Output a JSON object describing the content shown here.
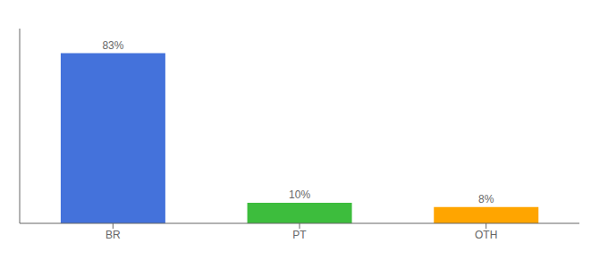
{
  "chart_data": {
    "type": "bar",
    "categories": [
      "BR",
      "PT",
      "OTH"
    ],
    "values": [
      83,
      10,
      8
    ],
    "value_labels": [
      "83%",
      "10%",
      "8%"
    ],
    "colors": [
      "#4472DB",
      "#3DBD3D",
      "#FFA500"
    ],
    "ylim": [
      0,
      95
    ],
    "data_labels": true,
    "tick_labels": "x"
  }
}
